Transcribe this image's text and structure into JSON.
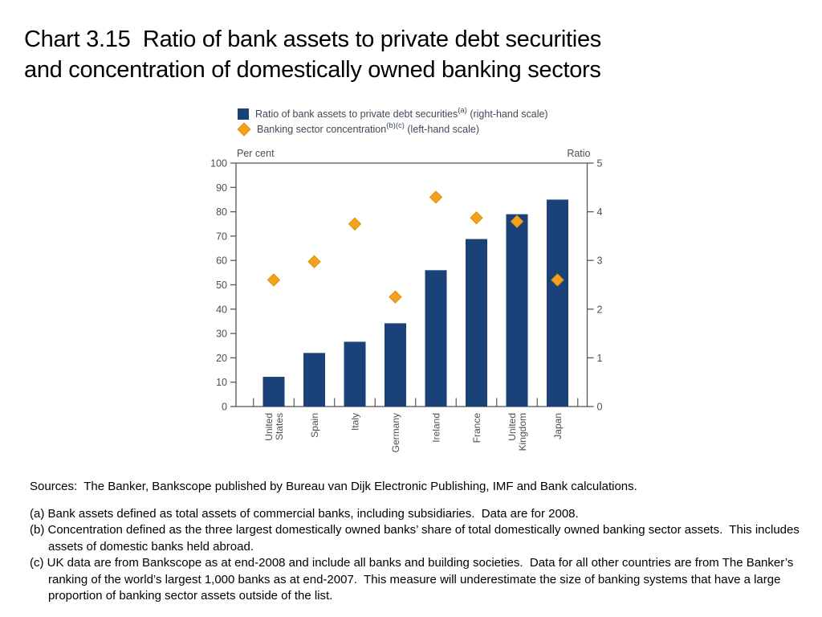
{
  "slide": {
    "title_line1": "Chart 3.15  Ratio of bank assets to private debt securities",
    "title_line2": "and concentration of domestically owned banking sectors"
  },
  "legend": {
    "items": [
      {
        "marker": "navy-square",
        "main": "Ratio of bank assets to private debt securities",
        "sup": "(a)",
        "tail": " (right-hand scale)"
      },
      {
        "marker": "orange-diamond",
        "main": "Banking sector concentration",
        "sup": "(b)(c)",
        "tail": " (left-hand scale)"
      }
    ]
  },
  "chart_data": {
    "type": "bar",
    "categories": [
      "United States",
      "Spain",
      "Italy",
      "Germany",
      "Ireland",
      "France",
      "United Kingdom",
      "Japan"
    ],
    "series": [
      {
        "name": "Ratio of bank assets to private debt securities (right-hand scale)",
        "type": "bar",
        "axis": "right",
        "values": [
          0.61,
          1.1,
          1.33,
          1.71,
          2.8,
          3.44,
          3.95,
          4.25
        ],
        "color": "#1B4278"
      },
      {
        "name": "Banking sector concentration (left-hand scale)",
        "type": "scatter",
        "marker": "diamond",
        "axis": "left",
        "values": [
          52,
          59.5,
          75,
          45,
          86,
          77.5,
          76,
          52
        ],
        "color": "#F6A11C",
        "marker_stroke": "#DC8F10"
      }
    ],
    "left_axis": {
      "label": "Per cent",
      "min": 0,
      "max": 100,
      "tick_step": 10
    },
    "right_axis": {
      "label": "Ratio",
      "min": 0,
      "max": 5,
      "tick_step": 1
    },
    "grid": false,
    "legend_position": "top",
    "axis_color": "#57585B",
    "axis_text_color": "#4C4D52"
  },
  "footnotes": {
    "sources": "Sources:  The Banker, Bankscope published by Bureau van Dijk Electronic Publishing, IMF and Bank calculations.",
    "notes": [
      {
        "lines": [
          "(a) Bank assets defined as total assets of commercial banks, including subsidiaries.  Data are for 2008."
        ]
      },
      {
        "lines": [
          "(b) Concentration defined as the three largest domestically owned banks’ share of total domestically owned banking sector assets.  This includes",
          "assets of domestic banks held abroad."
        ]
      },
      {
        "lines": [
          "(c) UK data are from Bankscope as at end-2008 and include all banks and building societies.  Data for all other countries are from The Banker’s",
          "ranking of the world’s largest 1,000 banks as at end-2007.  This measure will underestimate the size of banking systems that have a large",
          "proportion of banking sector assets outside of the list."
        ]
      }
    ]
  }
}
